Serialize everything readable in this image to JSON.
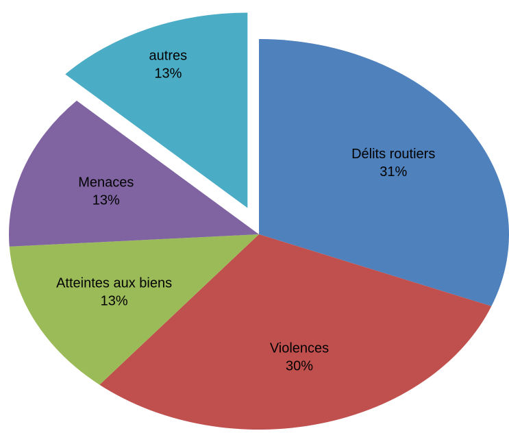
{
  "chart_data": {
    "type": "pie",
    "categories": [
      "Délits routiers",
      "Violences",
      "Atteintes aux biens",
      "Menaces",
      "autres"
    ],
    "values": [
      31,
      30,
      13,
      13,
      13
    ],
    "value_labels": [
      "31%",
      "30%",
      "13%",
      "13%",
      "13%"
    ],
    "colors": [
      "#4f81bd",
      "#c0504d",
      "#9bbb59",
      "#8064a2",
      "#4bacc6"
    ],
    "explode": [
      false,
      false,
      false,
      false,
      true
    ]
  }
}
